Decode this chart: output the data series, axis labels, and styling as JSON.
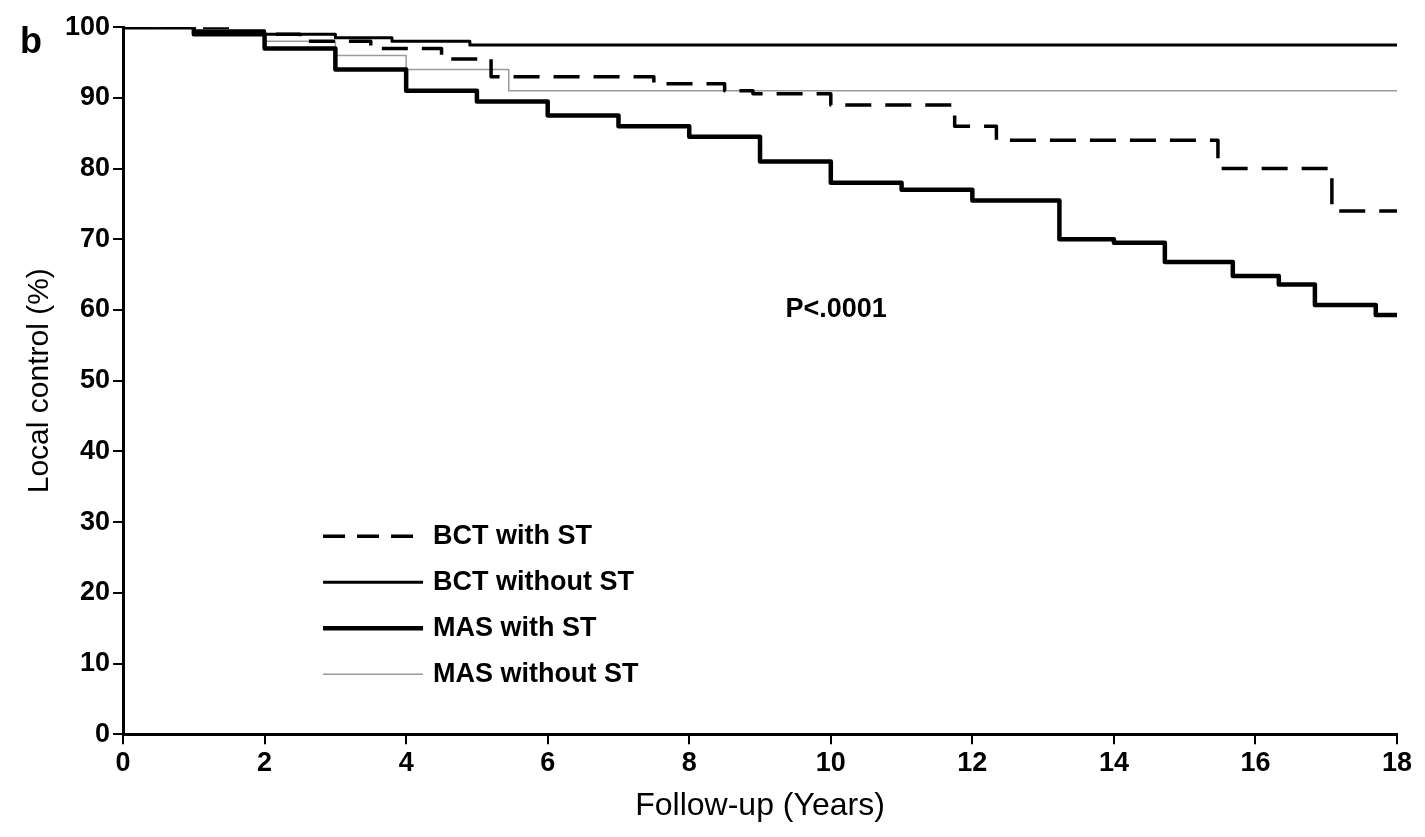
{
  "chart_data": {
    "type": "step",
    "xlabel": "Follow-up (Years)",
    "ylabel": "Local control (%)",
    "xlim": [
      0,
      18
    ],
    "ylim": [
      0,
      100
    ],
    "xticks": [
      0,
      2,
      4,
      6,
      8,
      10,
      12,
      14,
      16,
      18
    ],
    "yticks": [
      0,
      10,
      20,
      30,
      40,
      50,
      60,
      70,
      80,
      90,
      100
    ],
    "grid": false,
    "legend": "bottom left",
    "marker": "none",
    "annotations": [
      "b",
      "P<.0001"
    ],
    "series": [
      {
        "name": "BCT with ST",
        "color": "#000000",
        "line_style": "dashed",
        "x": [
          0,
          1.5,
          2.5,
          3.5,
          4.5,
          5.2,
          7.5,
          8.5,
          8.9,
          10,
          11.75,
          12.34,
          15.47,
          17.08,
          18
        ],
        "values": [
          100,
          99,
          98,
          97,
          95.5,
          93,
          92,
          91,
          90.6,
          89,
          86,
          84,
          80,
          74,
          74
        ]
      },
      {
        "name": "BCT without ST",
        "color": "#000000",
        "line_style": "solid",
        "x": [
          0,
          1,
          2,
          3,
          3.8,
          4.9,
          18
        ],
        "values": [
          100,
          99.5,
          99,
          98.5,
          98,
          97.5,
          97.5
        ]
      },
      {
        "name": "MAS with ST",
        "color": "#000000",
        "line_style": "solid",
        "x": [
          0,
          1,
          2,
          3,
          4,
          5,
          6,
          7,
          8,
          9,
          10,
          11,
          12,
          13.23,
          14,
          14.72,
          15.68,
          16.33,
          16.84,
          17.7,
          18
        ],
        "values": [
          100,
          99,
          97,
          94,
          91,
          89.5,
          87.5,
          86,
          84.5,
          81,
          78,
          77,
          75.5,
          70,
          69.5,
          66.8,
          64.8,
          63.6,
          60.7,
          59.3,
          59.3
        ]
      },
      {
        "name": "MAS without ST",
        "color": "#9a9a9a",
        "line_style": "solid",
        "x": [
          0,
          1,
          2,
          3,
          4,
          5.45,
          18
        ],
        "values": [
          100,
          99,
          98,
          96,
          94,
          91,
          91
        ]
      }
    ]
  }
}
